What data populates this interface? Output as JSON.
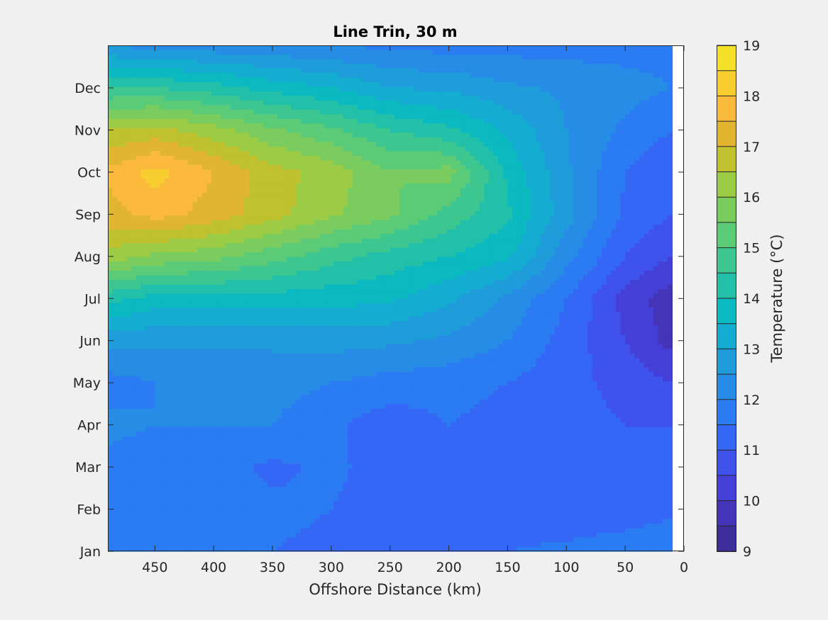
{
  "chart_data": {
    "type": "heatmap",
    "subtype": "filled-contour",
    "title": "Line Trin, 30 m",
    "xlabel": "Offshore Distance (km)",
    "ylabel": "",
    "x_reversed": true,
    "xlim": [
      490,
      0
    ],
    "x_ticks": [
      450,
      400,
      350,
      300,
      250,
      200,
      150,
      100,
      50,
      0
    ],
    "x_tick_labels": [
      "450",
      "400",
      "350",
      "300",
      "250",
      "200",
      "150",
      "100",
      "50",
      "0"
    ],
    "data_xlim": [
      490,
      10
    ],
    "y_categories": [
      "Jan",
      "Feb",
      "Mar",
      "Apr",
      "May",
      "Jun",
      "Jul",
      "Aug",
      "Sep",
      "Oct",
      "Nov",
      "Dec"
    ],
    "colorbar": {
      "label": "Temperature (°C)",
      "min": 9,
      "max": 19,
      "step": 0.5,
      "tick_values": [
        9,
        10,
        11,
        12,
        13,
        14,
        15,
        16,
        17,
        18,
        19
      ],
      "tick_labels": [
        "9",
        "10",
        "11",
        "12",
        "13",
        "14",
        "15",
        "16",
        "17",
        "18",
        "19"
      ],
      "colors": [
        "#3e2e9b",
        "#4434b8",
        "#4440d7",
        "#3f52ec",
        "#3467f6",
        "#2b7bf2",
        "#268ce5",
        "#1f9ddb",
        "#14acd0",
        "#0bb9c0",
        "#22c0a9",
        "#3ec691",
        "#5bcb78",
        "#7acc5f",
        "#9ccb45",
        "#c0c12f",
        "#e2b531",
        "#fcba3c",
        "#f8cd30",
        "#f5e128"
      ]
    },
    "grid_x_km": [
      490,
      450,
      400,
      350,
      300,
      250,
      200,
      150,
      100,
      50,
      10
    ],
    "grid_y_months": [
      "Jan",
      "Feb",
      "Mar",
      "Apr",
      "May",
      "Jun",
      "Jul",
      "Aug",
      "Sep",
      "Oct",
      "Nov",
      "Dec",
      "Jan"
    ],
    "values": [
      [
        11.6,
        11.5,
        11.5,
        11.5,
        11.4,
        11.3,
        11.4,
        11.5,
        11.6,
        11.7,
        11.8
      ],
      [
        11.9,
        11.8,
        11.7,
        11.6,
        11.5,
        11.3,
        11.3,
        11.2,
        11.2,
        11.3,
        11.4
      ],
      [
        11.9,
        11.8,
        11.7,
        11.4,
        11.6,
        11.3,
        11.3,
        11.2,
        11.2,
        11.1,
        11.0
      ],
      [
        12.1,
        12.0,
        12.0,
        12.0,
        11.6,
        11.2,
        11.5,
        11.3,
        11.2,
        11.0,
        11.0
      ],
      [
        11.8,
        12.0,
        12.0,
        12.2,
        12.0,
        11.8,
        11.7,
        11.5,
        11.2,
        10.8,
        10.5
      ],
      [
        12.7,
        12.6,
        12.6,
        12.6,
        12.7,
        12.6,
        12.4,
        12.0,
        11.3,
        10.5,
        9.8
      ],
      [
        14.2,
        13.8,
        13.8,
        13.8,
        13.7,
        13.6,
        13.1,
        12.4,
        11.5,
        10.3,
        9.7
      ],
      [
        16.3,
        15.9,
        15.7,
        15.2,
        14.7,
        14.3,
        14.0,
        13.6,
        12.2,
        11.0,
        10.5
      ],
      [
        17.3,
        17.7,
        17.3,
        16.7,
        16.1,
        15.6,
        14.8,
        14.1,
        12.7,
        11.4,
        11.0
      ],
      [
        17.6,
        18.2,
        17.5,
        16.7,
        16.3,
        15.5,
        15.7,
        13.9,
        12.6,
        11.5,
        11.0
      ],
      [
        16.5,
        16.7,
        16.2,
        15.6,
        15.1,
        14.5,
        14.1,
        13.4,
        12.5,
        11.9,
        11.5
      ],
      [
        14.5,
        14.5,
        14.2,
        13.8,
        13.5,
        13.0,
        12.9,
        12.6,
        12.4,
        12.2,
        12.0
      ],
      [
        12.5,
        12.3,
        12.2,
        12.1,
        12.0,
        11.9,
        11.8,
        11.8,
        11.8,
        11.8,
        11.8
      ]
    ]
  }
}
